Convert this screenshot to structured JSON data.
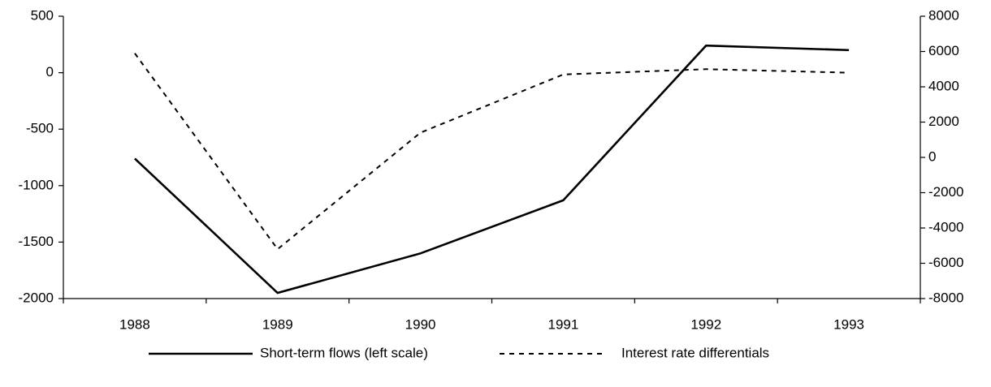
{
  "chart_data": {
    "type": "line",
    "categories": [
      "1988",
      "1989",
      "1990",
      "1991",
      "1992",
      "1993"
    ],
    "series": [
      {
        "name": "Short-term flows (left scale)",
        "color": "#000000",
        "dash": "solid",
        "values": [
          -760,
          -1950,
          -1600,
          -1130,
          240,
          200
        ]
      },
      {
        "name": "Interest rate differentials",
        "color": "#000000",
        "dash": "dashed",
        "axis": "y2",
        "values": [
          5900,
          -5200,
          1400,
          4700,
          5000,
          4800
        ]
      }
    ],
    "ylim": [
      -2000,
      500
    ],
    "yticks": [
      -2000,
      -1500,
      -1000,
      -500,
      0,
      500
    ],
    "y2lim": [
      -8000,
      8000
    ],
    "y2ticks": [
      -8000,
      -6000,
      -4000,
      -2000,
      0,
      2000,
      4000,
      6000,
      8000
    ],
    "grid": false,
    "legend": "bottom"
  }
}
